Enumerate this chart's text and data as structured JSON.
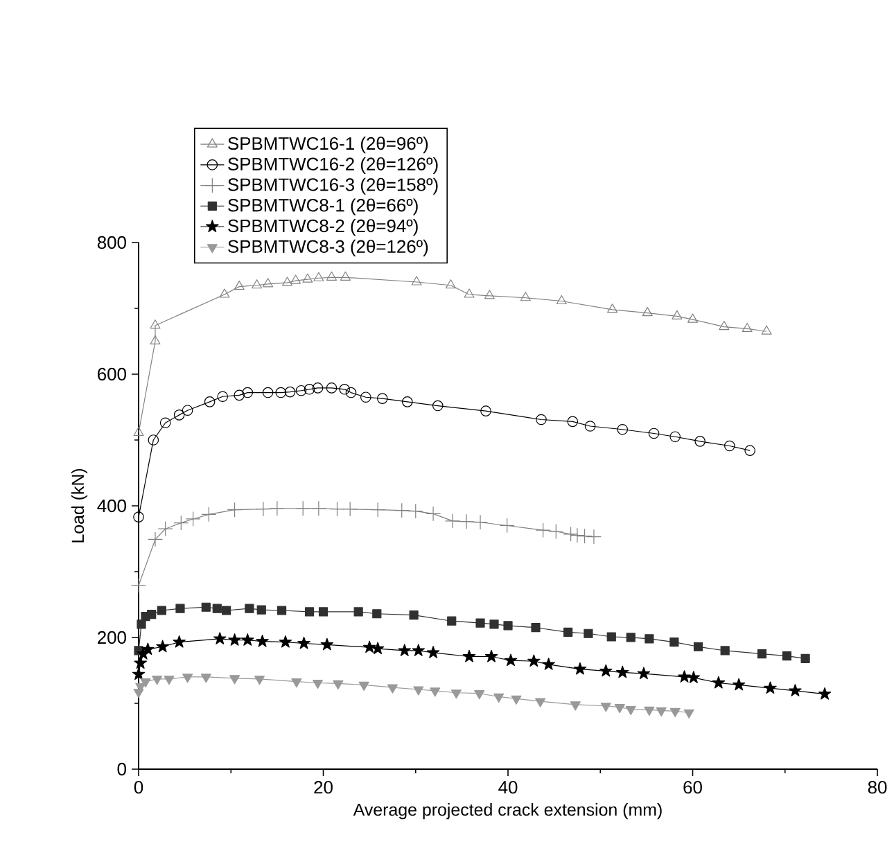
{
  "chart_data": {
    "type": "line",
    "xlabel": "Average projected crack extension (mm)",
    "ylabel": "Load (kN)",
    "xlim": [
      0,
      80
    ],
    "xticks": [
      0,
      20,
      40,
      60,
      80
    ],
    "ylim": [
      0,
      800
    ],
    "yticks": [
      0,
      200,
      400,
      600,
      800
    ],
    "legend": "top",
    "grid": false,
    "line_style": "solid",
    "series": [
      {
        "name": "SPBMTWC16-1 (2θ=96º)",
        "color": "#808080",
        "marker": "triangle",
        "x": [
          0,
          1.8,
          1.8,
          9.3,
          10.9,
          12.8,
          14,
          16.1,
          17,
          18.3,
          19.5,
          20.9,
          22.4,
          30.1,
          33.8,
          35.8,
          38,
          41.9,
          45.8,
          51.3,
          55.1,
          58.3,
          60,
          63.4,
          65.9,
          68
        ],
        "values": [
          511,
          650,
          674,
          721,
          733,
          735,
          737,
          739,
          742,
          744,
          746,
          747,
          747,
          740,
          735,
          721,
          719,
          716,
          711,
          698,
          693,
          688,
          683,
          672,
          669,
          665
        ]
      },
      {
        "name": "SPBMTWC16-2 (2θ=126º)",
        "color": "#000000",
        "marker": "circle",
        "x": [
          0,
          1.6,
          2.9,
          4.4,
          5.3,
          7.7,
          9.1,
          10.9,
          11.8,
          14,
          15.4,
          16.4,
          17.6,
          18.5,
          19.4,
          20.9,
          22.3,
          23,
          24.6,
          26.4,
          29.1,
          32.4,
          37.6,
          43.6,
          47,
          48.9,
          52.4,
          55.8,
          58.1,
          60.8,
          64,
          66.2
        ],
        "values": [
          383,
          500,
          526,
          538,
          545,
          558,
          566,
          568,
          572,
          572,
          572,
          573,
          575,
          577,
          579,
          579,
          577,
          572,
          565,
          563,
          558,
          552,
          544,
          531,
          528,
          521,
          516,
          510,
          505,
          498,
          491,
          484
        ]
      },
      {
        "name": "SPBMTWC16-3 (2θ=158º)",
        "color": "#808080",
        "marker": "cross",
        "x": [
          0,
          1.8,
          2.9,
          4.6,
          5.9,
          7.6,
          10.4,
          13.5,
          15,
          17.8,
          19.5,
          21.5,
          22.9,
          25.9,
          28.5,
          30,
          31.9,
          34,
          35.5,
          37,
          39.9,
          43.8,
          45.2,
          46.8,
          47.5,
          48.3,
          49.3
        ],
        "values": [
          279,
          349,
          365,
          374,
          380,
          387,
          394,
          395,
          396,
          396,
          396,
          395,
          395,
          394,
          393,
          392,
          388,
          377,
          376,
          375,
          370,
          363,
          361,
          357,
          355,
          354,
          353
        ]
      },
      {
        "name": "SPBMTWC8-1 (2θ=66º)",
        "color": "#303030",
        "marker": "square",
        "x": [
          0,
          0.3,
          0.75,
          1.4,
          2.5,
          4.5,
          7.3,
          8.5,
          9.5,
          12,
          13.3,
          15.5,
          18.5,
          20,
          23.8,
          25.8,
          29.8,
          33.9,
          37,
          38.5,
          40,
          43,
          46.5,
          48.7,
          51.2,
          53.3,
          55.3,
          58,
          60.6,
          63.5,
          67.5,
          70.2,
          72.2
        ],
        "values": [
          180,
          220,
          232,
          235,
          241,
          244,
          246,
          244,
          241,
          244,
          242,
          241,
          239,
          239,
          239,
          236,
          234,
          225,
          222,
          220,
          218,
          215,
          208,
          206,
          201,
          200,
          198,
          193,
          186,
          180,
          175,
          172,
          168
        ]
      },
      {
        "name": "SPBMTWC8-2 (2θ=94º)",
        "color": "#000000",
        "marker": "star",
        "x": [
          0,
          0.2,
          0.5,
          1,
          2.6,
          4.4,
          8.8,
          10.4,
          11.8,
          13.4,
          15.9,
          17.9,
          20.4,
          25,
          25.9,
          28.8,
          30.3,
          31.9,
          35.8,
          38.2,
          40.3,
          42.8,
          44.4,
          47.8,
          50.6,
          52.4,
          54.7,
          59.1,
          60.1,
          62.8,
          65,
          68.4,
          71.1,
          74.3
        ],
        "values": [
          144,
          161,
          175,
          182,
          186,
          193,
          198,
          196,
          196,
          194,
          193,
          191,
          189,
          185,
          183,
          180,
          180,
          177,
          171,
          171,
          165,
          164,
          159,
          152,
          149,
          147,
          145,
          140,
          139,
          131,
          128,
          123,
          119,
          114
        ]
      },
      {
        "name": "SPBMTWC8-3 (2θ=126º)",
        "color": "#999999",
        "marker": "triangle",
        "x": [
          0,
          0.2,
          0.75,
          2,
          3.3,
          5.3,
          7.3,
          10.4,
          13.1,
          17.1,
          19.4,
          21.6,
          24.4,
          27.5,
          30.3,
          32.1,
          34.4,
          36.9,
          39,
          40.9,
          43.5,
          47.3,
          50.6,
          52.1,
          53.3,
          55.3,
          56.6,
          58.1,
          59.6
        ],
        "values": [
          117,
          126,
          133,
          137,
          137,
          140,
          140,
          138,
          137,
          133,
          131,
          130,
          128,
          124,
          121,
          119,
          116,
          115,
          110,
          107,
          103,
          98,
          96,
          94,
          91,
          90,
          89,
          88,
          86
        ]
      }
    ]
  }
}
